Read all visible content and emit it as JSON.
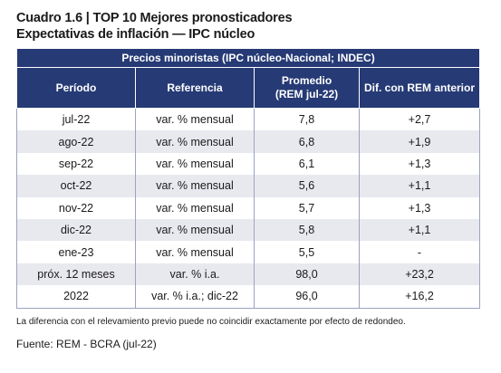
{
  "title": {
    "line1": "Cuadro 1.6 | TOP 10 Mejores pronosticadores",
    "line2": "Expectativas de inflación — IPC núcleo"
  },
  "table": {
    "super_header": "Precios minoristas (IPC núcleo-Nacional; INDEC)",
    "headers": {
      "periodo": "Período",
      "referencia": "Referencia",
      "promedio_line1": "Promedio",
      "promedio_line2": "(REM jul-22)",
      "dif": "Dif. con REM anterior"
    },
    "rows": [
      {
        "periodo": "jul-22",
        "referencia": "var. % mensual",
        "promedio": "7,8",
        "dif": "+2,7"
      },
      {
        "periodo": "ago-22",
        "referencia": "var. % mensual",
        "promedio": "6,8",
        "dif": "+1,9"
      },
      {
        "periodo": "sep-22",
        "referencia": "var. % mensual",
        "promedio": "6,1",
        "dif": "+1,3"
      },
      {
        "periodo": "oct-22",
        "referencia": "var. % mensual",
        "promedio": "5,6",
        "dif": "+1,1"
      },
      {
        "periodo": "nov-22",
        "referencia": "var. % mensual",
        "promedio": "5,7",
        "dif": "+1,3"
      },
      {
        "periodo": "dic-22",
        "referencia": "var. % mensual",
        "promedio": "5,8",
        "dif": "+1,1"
      },
      {
        "periodo": "ene-23",
        "referencia": "var. % mensual",
        "promedio": "5,5",
        "dif": "-"
      },
      {
        "periodo": "próx. 12 meses",
        "referencia": "var. % i.a.",
        "promedio": "98,0",
        "dif": "+23,2"
      },
      {
        "periodo": "2022",
        "referencia": "var. % i.a.; dic-22",
        "promedio": "96,0",
        "dif": "+16,2"
      }
    ]
  },
  "note": "La diferencia con el relevamiento previo puede no coincidir exactamente por efecto de redondeo.",
  "source": "Fuente: REM - BCRA (jul-22)"
}
